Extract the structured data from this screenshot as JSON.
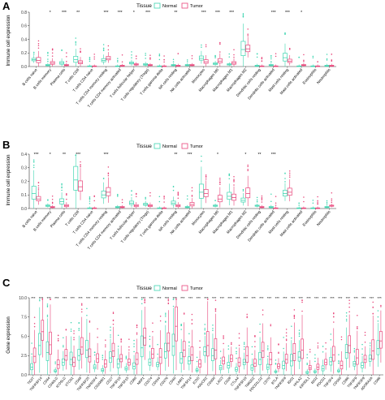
{
  "colors": {
    "normal": "#3fd5b1",
    "tumor": "#e8457a",
    "axis": "#333333"
  },
  "chart_data": [
    {
      "panel": "A",
      "type": "box",
      "legend_title": "Tissue",
      "legend_entries": [
        "Normal",
        "Tumor"
      ],
      "legend_position": "top",
      "ylabel": "Immune cell expression",
      "ylim": [
        0,
        0.8
      ],
      "yticks": [
        "0.0",
        "0.2",
        "0.4",
        "0.6",
        "0.8"
      ],
      "categories": [
        "B cells naive",
        "B cells memory",
        "Plasma cells",
        "T cells CD8",
        "T cells CD4 naive",
        "T cells CD4 memory resting",
        "T cells CD4 memory activated",
        "T cells follicular helper",
        "T cells regulatory (Tregs)",
        "T cells gamma delta",
        "NK cells resting",
        "NK cells activated",
        "Monocytes",
        "Macrophages M0",
        "Macrophages M1",
        "Macrophages M2",
        "Dendritic cells resting",
        "Dendritic cells activated",
        "Mast cells resting",
        "Mast cells activated",
        "Eosinophils",
        "Neutrophils"
      ],
      "significance": [
        "",
        "*",
        "***",
        "**",
        "",
        "***",
        "***",
        "*",
        "***",
        "",
        "**",
        "",
        "***",
        "***",
        "***",
        "",
        "",
        "***",
        "***",
        "*",
        "",
        ""
      ],
      "series": [
        {
          "name": "Normal",
          "medians": [
            0.1,
            0.02,
            0.05,
            0.1,
            0.0,
            0.09,
            0.0,
            0.05,
            0.03,
            0.0,
            0.02,
            0.02,
            0.12,
            0.04,
            0.03,
            0.25,
            0.01,
            0.02,
            0.13,
            0.0,
            0.0,
            0.01
          ]
        },
        {
          "name": "Tumor",
          "medians": [
            0.09,
            0.05,
            0.02,
            0.06,
            0.0,
            0.12,
            0.01,
            0.03,
            0.02,
            0.0,
            0.01,
            0.02,
            0.07,
            0.08,
            0.05,
            0.26,
            0.0,
            0.0,
            0.08,
            0.02,
            0.0,
            0.01
          ]
        }
      ]
    },
    {
      "panel": "B",
      "type": "box",
      "legend_title": "Tissue",
      "legend_entries": [
        "Normal",
        "Tumor"
      ],
      "legend_position": "top",
      "ylabel": "Immune cell expression",
      "ylim": [
        0,
        0.4
      ],
      "yticks": [
        "0.0",
        "0.1",
        "0.2",
        "0.3",
        "0.4"
      ],
      "categories": [
        "B cells naive",
        "B cells memory",
        "Plasma cells",
        "T cells CD8",
        "T cells CD4 naive",
        "T cells CD4 memory resting",
        "T cells CD4 memory activated",
        "T cells follicular helper",
        "T cells regulatory (Tregs)",
        "T cells gamma delta",
        "NK cells resting",
        "NK cells activated",
        "Monocytes",
        "Macrophages M0",
        "Macrophages M1",
        "Macrophages M2",
        "Dendritic cells resting",
        "Dendritic cells activated",
        "Mast cells resting",
        "Mast cells activated",
        "Eosinophils",
        "Neutrophils"
      ],
      "significance": [
        "***",
        "*",
        "**",
        "***",
        "",
        "***",
        "",
        "",
        "",
        "",
        "**",
        "***",
        "",
        "*",
        "",
        "*",
        "**",
        "***",
        "",
        "",
        "",
        ""
      ],
      "series": [
        {
          "name": "Normal",
          "medians": [
            0.11,
            0.02,
            0.05,
            0.21,
            0.0,
            0.1,
            0.01,
            0.04,
            0.03,
            0.0,
            0.04,
            0.01,
            0.12,
            0.02,
            0.09,
            0.06,
            0.02,
            0.01,
            0.11,
            0.0,
            0.0,
            0.01
          ]
        },
        {
          "name": "Tumor",
          "medians": [
            0.07,
            0.01,
            0.02,
            0.16,
            0.0,
            0.12,
            0.01,
            0.02,
            0.02,
            0.0,
            0.02,
            0.03,
            0.11,
            0.07,
            0.08,
            0.11,
            0.01,
            0.0,
            0.12,
            0.0,
            0.0,
            0.02
          ]
        }
      ]
    },
    {
      "panel": "C",
      "type": "box",
      "legend_title": "Tissue",
      "legend_entries": [
        "Normal",
        "Tumor"
      ],
      "legend_position": "top",
      "ylabel": "Gene expression",
      "ylim": [
        0,
        10
      ],
      "yticks": [
        "0.0",
        "2.5",
        "5.0",
        "7.5",
        "10.0"
      ],
      "categories": [
        "TIGIT",
        "TNFRSF14",
        "CD44",
        "CD40LG",
        "ICOSLG",
        "VTCN1",
        "CD48",
        "TNFRSF25",
        "TNFRSF4",
        "CD200R1",
        "CD27",
        "TNFSF18",
        "TNFSF15",
        "CD80",
        "NRP1",
        "CD274",
        "CD244",
        "CD276",
        "CD40",
        "LAIR1",
        "TNFSF14",
        "ICOS",
        "HAVCR2",
        "CD200",
        "LAG3",
        "CD28",
        "CTLA4",
        "TNFRSF18",
        "TMIGD2",
        "PDCD1LG2",
        "CD70",
        "BTLA",
        "TNFRSF8",
        "IDO1",
        "HHLA2",
        "KIR3DL1",
        "IDO2",
        "PDCD1",
        "TNFSF4",
        "CD160",
        "CD86",
        "TNFSF9",
        "TNFRSF9",
        "ADORA2A",
        "CD86"
      ],
      "significance": [
        "***",
        "***",
        "***",
        "***",
        "***",
        "***",
        "***",
        "***",
        "***",
        "***",
        "***",
        "***",
        "***",
        "***",
        "***",
        "***",
        "***",
        "***",
        "***",
        "***",
        "***",
        "***",
        "***",
        "***",
        "***",
        "***",
        "***",
        "***",
        "***",
        "***",
        "***",
        "***",
        "***",
        "***",
        "***",
        "***",
        "***",
        "***",
        "***",
        "***",
        "***",
        "***",
        "***",
        "***",
        "***"
      ],
      "series": [
        {
          "name": "Normal",
          "medians": [
            1.0,
            3.8,
            2.9,
            0.5,
            1.6,
            2.0,
            2.5,
            3.2,
            1.0,
            0.6,
            2.2,
            1.4,
            0.8,
            1.1,
            3.5,
            1.6,
            1.3,
            3.0,
            3.7,
            2.1,
            1.8,
            0.6,
            3.0,
            2.5,
            0.9,
            1.2,
            0.7,
            1.6,
            0.9,
            2.0,
            1.0,
            0.4,
            1.2,
            1.8,
            2.3,
            0.3,
            0.4,
            0.8,
            1.7,
            0.5,
            2.9,
            1.4,
            1.2,
            2.1,
            3.4
          ]
        },
        {
          "name": "Tumor",
          "medians": [
            2.4,
            5.6,
            3.9,
            1.3,
            2.5,
            1.6,
            3.6,
            2.4,
            2.1,
            1.4,
            3.1,
            2.1,
            1.6,
            2.0,
            4.8,
            2.7,
            2.3,
            4.1,
            6.3,
            3.2,
            2.6,
            1.4,
            3.8,
            3.2,
            1.8,
            2.1,
            1.6,
            2.5,
            1.5,
            3.1,
            2.0,
            1.1,
            2.0,
            2.8,
            3.2,
            0.9,
            1.0,
            1.6,
            2.6,
            1.2,
            3.8,
            2.2,
            2.0,
            3.1,
            4.4
          ]
        }
      ]
    }
  ]
}
